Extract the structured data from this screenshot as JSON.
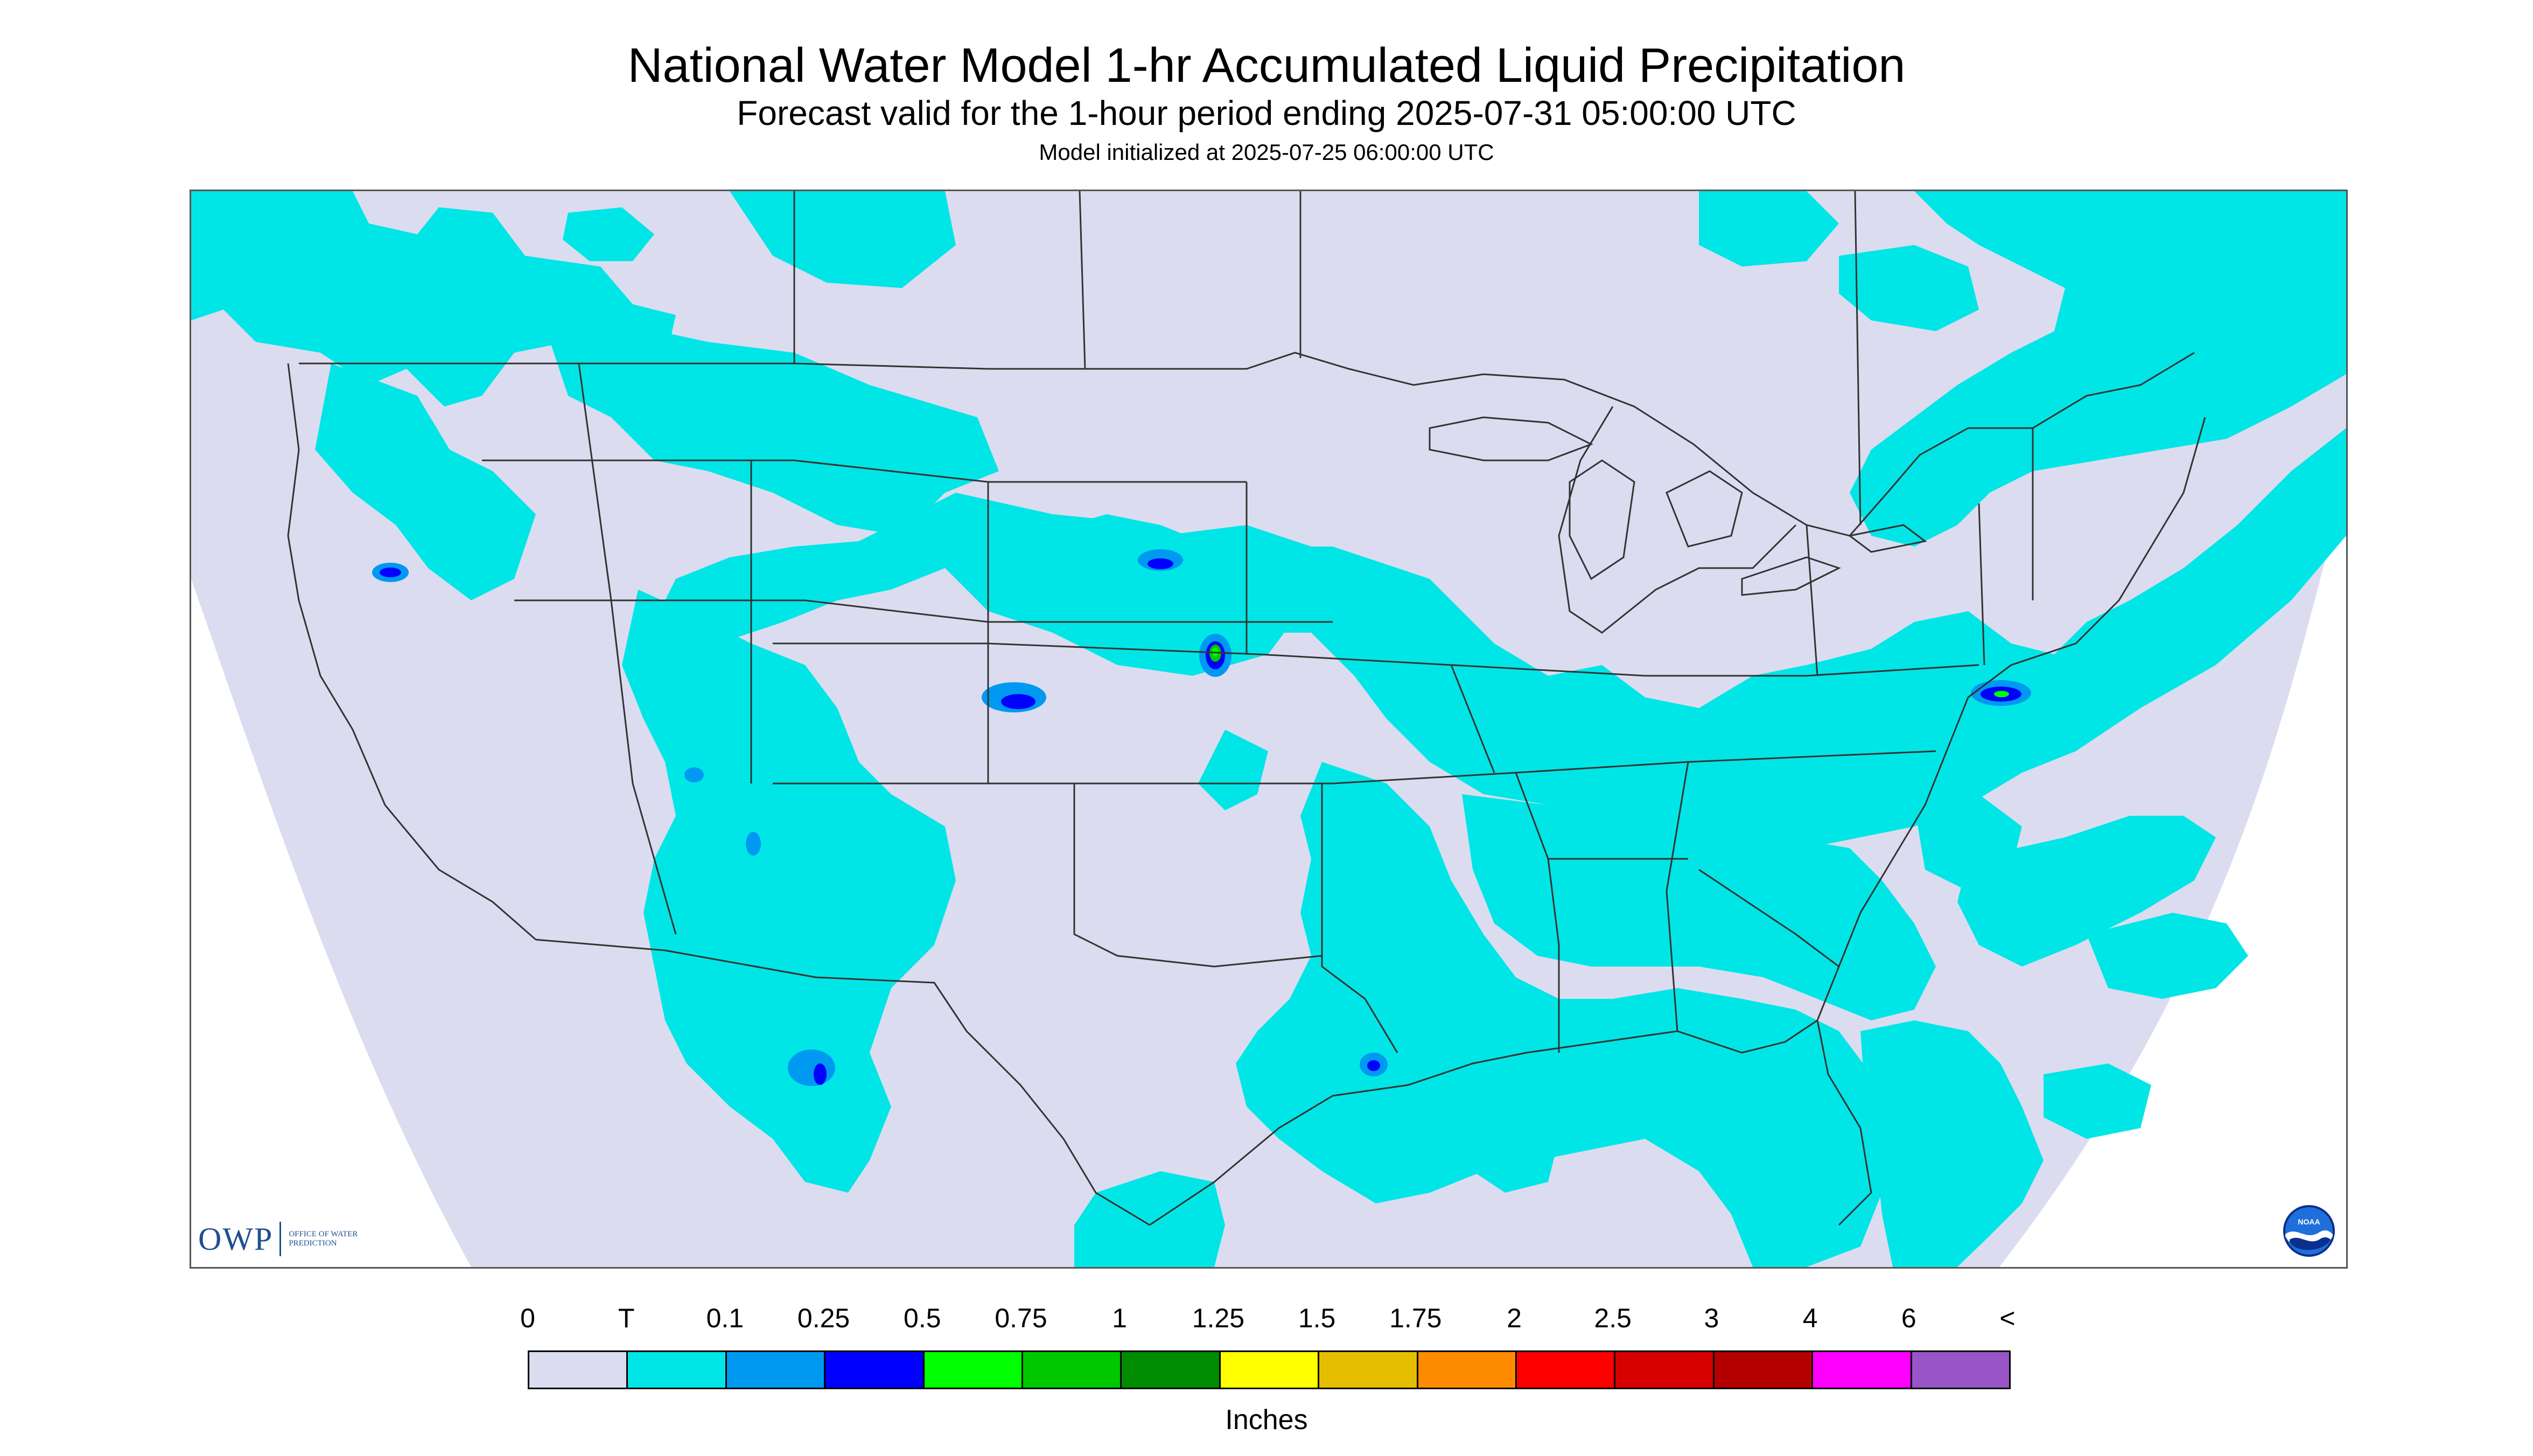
{
  "header": {
    "title": "National Water Model 1-hr Accumulated Liquid Precipitation",
    "subtitle": "Forecast valid for the 1-hour period ending 2025-07-31 05:00:00 UTC",
    "init": "Model initialized at 2025-07-25 06:00:00 UTC"
  },
  "map": {
    "projection": "Lambert conformal conic",
    "region": "Contiguous United States",
    "colors": {
      "background": "#dcdcf0",
      "outside": "#ffffff",
      "trace": "#00e6e6",
      "light_blue": "#0099f2",
      "blue": "#0000ff",
      "green": "#00ff00",
      "boundaries": "#333333"
    }
  },
  "logos": {
    "owp_mark": "OWP",
    "owp_text": "Office of Water Prediction",
    "noaa_text": "NOAA"
  },
  "legend": {
    "labels": [
      "0",
      "T",
      "0.1",
      "0.25",
      "0.5",
      "0.75",
      "1",
      "1.25",
      "1.5",
      "1.75",
      "2",
      "2.5",
      "3",
      "4",
      "6",
      "<"
    ],
    "colors": [
      "#dcdcf0",
      "#00e6e6",
      "#0099f2",
      "#0000ff",
      "#00ff00",
      "#00c800",
      "#008c00",
      "#ffff00",
      "#e6be00",
      "#ff8c00",
      "#ff0000",
      "#d70000",
      "#b40000",
      "#ff00ff",
      "#9955c8"
    ],
    "units": "Inches"
  }
}
